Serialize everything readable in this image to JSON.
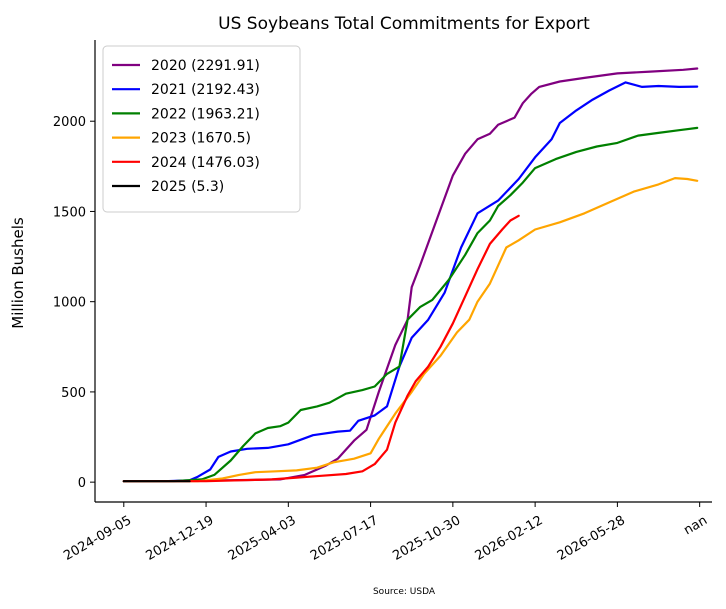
{
  "chart_data": {
    "type": "line",
    "title": "US Soybeans Total Commitments for Export",
    "ylabel": "Million Bushels",
    "source": "Source: USDA",
    "ylim": [
      -110,
      2450
    ],
    "y_ticks": [
      0,
      500,
      1000,
      1500,
      2000
    ],
    "x_range": [
      -0.35,
      7.15
    ],
    "x_ticks": [
      {
        "label": "2024-09-05",
        "x": 0
      },
      {
        "label": "2024-12-19",
        "x": 1
      },
      {
        "label": "2025-04-03",
        "x": 2
      },
      {
        "label": "2025-07-17",
        "x": 3
      },
      {
        "label": "2025-10-30",
        "x": 4
      },
      {
        "label": "2026-02-12",
        "x": 5
      },
      {
        "label": "2026-05-28",
        "x": 6
      },
      {
        "label": "nan",
        "x": 7
      }
    ],
    "legend_position": "upper-left",
    "series": [
      {
        "name": "2020 (2291.91)",
        "color": "#800080",
        "points": [
          [
            0,
            5
          ],
          [
            0.5,
            5
          ],
          [
            0.9,
            8
          ],
          [
            1.2,
            10
          ],
          [
            1.5,
            12
          ],
          [
            1.9,
            15
          ],
          [
            2.2,
            40
          ],
          [
            2.45,
            90
          ],
          [
            2.6,
            130
          ],
          [
            2.8,
            230
          ],
          [
            2.95,
            290
          ],
          [
            3.1,
            500
          ],
          [
            3.3,
            760
          ],
          [
            3.45,
            900
          ],
          [
            3.5,
            1080
          ],
          [
            3.6,
            1200
          ],
          [
            3.8,
            1450
          ],
          [
            4.0,
            1700
          ],
          [
            4.15,
            1820
          ],
          [
            4.3,
            1900
          ],
          [
            4.45,
            1930
          ],
          [
            4.55,
            1980
          ],
          [
            4.65,
            2000
          ],
          [
            4.75,
            2020
          ],
          [
            4.85,
            2100
          ],
          [
            4.95,
            2150
          ],
          [
            5.05,
            2190
          ],
          [
            5.3,
            2220
          ],
          [
            5.6,
            2240
          ],
          [
            6.0,
            2265
          ],
          [
            6.4,
            2275
          ],
          [
            6.8,
            2285
          ],
          [
            6.97,
            2292
          ]
        ]
      },
      {
        "name": "2021 (2192.43)",
        "color": "#0000ff",
        "points": [
          [
            0,
            5
          ],
          [
            0.5,
            5
          ],
          [
            0.8,
            10
          ],
          [
            0.9,
            30
          ],
          [
            1.05,
            70
          ],
          [
            1.15,
            140
          ],
          [
            1.3,
            170
          ],
          [
            1.5,
            185
          ],
          [
            1.75,
            190
          ],
          [
            2.0,
            210
          ],
          [
            2.3,
            260
          ],
          [
            2.6,
            280
          ],
          [
            2.75,
            285
          ],
          [
            2.85,
            340
          ],
          [
            3.05,
            370
          ],
          [
            3.2,
            420
          ],
          [
            3.35,
            640
          ],
          [
            3.5,
            800
          ],
          [
            3.7,
            900
          ],
          [
            3.9,
            1050
          ],
          [
            4.1,
            1300
          ],
          [
            4.3,
            1490
          ],
          [
            4.55,
            1560
          ],
          [
            4.8,
            1680
          ],
          [
            5.0,
            1800
          ],
          [
            5.2,
            1900
          ],
          [
            5.3,
            1990
          ],
          [
            5.5,
            2060
          ],
          [
            5.7,
            2120
          ],
          [
            5.9,
            2170
          ],
          [
            6.1,
            2215
          ],
          [
            6.3,
            2190
          ],
          [
            6.5,
            2195
          ],
          [
            6.75,
            2190
          ],
          [
            6.97,
            2192
          ]
        ]
      },
      {
        "name": "2022 (1963.21)",
        "color": "#008000",
        "points": [
          [
            0,
            5
          ],
          [
            0.6,
            5
          ],
          [
            0.95,
            15
          ],
          [
            1.1,
            40
          ],
          [
            1.3,
            120
          ],
          [
            1.45,
            200
          ],
          [
            1.6,
            270
          ],
          [
            1.75,
            300
          ],
          [
            1.9,
            310
          ],
          [
            2.0,
            330
          ],
          [
            2.15,
            400
          ],
          [
            2.35,
            420
          ],
          [
            2.5,
            440
          ],
          [
            2.7,
            490
          ],
          [
            2.9,
            510
          ],
          [
            3.05,
            530
          ],
          [
            3.2,
            600
          ],
          [
            3.35,
            640
          ],
          [
            3.45,
            900
          ],
          [
            3.6,
            970
          ],
          [
            3.75,
            1010
          ],
          [
            3.95,
            1120
          ],
          [
            4.15,
            1260
          ],
          [
            4.3,
            1380
          ],
          [
            4.45,
            1450
          ],
          [
            4.55,
            1530
          ],
          [
            4.7,
            1590
          ],
          [
            4.85,
            1660
          ],
          [
            5.0,
            1740
          ],
          [
            5.25,
            1790
          ],
          [
            5.5,
            1830
          ],
          [
            5.75,
            1860
          ],
          [
            6.0,
            1880
          ],
          [
            6.25,
            1920
          ],
          [
            6.5,
            1935
          ],
          [
            6.75,
            1950
          ],
          [
            6.97,
            1963
          ]
        ]
      },
      {
        "name": "2023 (1670.5)",
        "color": "#ffa500",
        "points": [
          [
            0,
            5
          ],
          [
            0.9,
            5
          ],
          [
            1.2,
            20
          ],
          [
            1.4,
            40
          ],
          [
            1.6,
            55
          ],
          [
            1.85,
            60
          ],
          [
            2.1,
            65
          ],
          [
            2.35,
            80
          ],
          [
            2.55,
            110
          ],
          [
            2.8,
            130
          ],
          [
            3.0,
            160
          ],
          [
            3.1,
            240
          ],
          [
            3.3,
            380
          ],
          [
            3.5,
            500
          ],
          [
            3.65,
            600
          ],
          [
            3.85,
            700
          ],
          [
            4.05,
            830
          ],
          [
            4.2,
            900
          ],
          [
            4.3,
            1000
          ],
          [
            4.45,
            1100
          ],
          [
            4.55,
            1200
          ],
          [
            4.65,
            1300
          ],
          [
            4.8,
            1340
          ],
          [
            5.0,
            1400
          ],
          [
            5.3,
            1440
          ],
          [
            5.6,
            1490
          ],
          [
            5.9,
            1550
          ],
          [
            6.2,
            1610
          ],
          [
            6.5,
            1650
          ],
          [
            6.7,
            1685
          ],
          [
            6.85,
            1680
          ],
          [
            6.97,
            1670
          ]
        ]
      },
      {
        "name": "2024 (1476.03)",
        "color": "#ff0000",
        "points": [
          [
            0,
            5
          ],
          [
            1.0,
            5
          ],
          [
            1.4,
            10
          ],
          [
            1.8,
            15
          ],
          [
            2.1,
            25
          ],
          [
            2.4,
            35
          ],
          [
            2.7,
            45
          ],
          [
            2.9,
            60
          ],
          [
            3.05,
            100
          ],
          [
            3.2,
            180
          ],
          [
            3.3,
            330
          ],
          [
            3.45,
            480
          ],
          [
            3.55,
            560
          ],
          [
            3.7,
            640
          ],
          [
            3.85,
            750
          ],
          [
            4.0,
            880
          ],
          [
            4.15,
            1030
          ],
          [
            4.3,
            1180
          ],
          [
            4.45,
            1320
          ],
          [
            4.6,
            1400
          ],
          [
            4.7,
            1450
          ],
          [
            4.8,
            1476
          ]
        ]
      },
      {
        "name": "2025 (5.3)",
        "color": "#000000",
        "points": [
          [
            0,
            5
          ],
          [
            0.4,
            5
          ],
          [
            0.8,
            5.3
          ]
        ]
      }
    ]
  }
}
